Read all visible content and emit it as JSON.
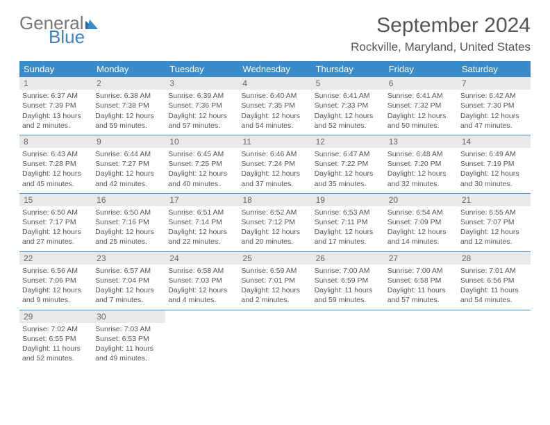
{
  "logo": {
    "general": "General",
    "blue": "Blue",
    "tri_color": "#1e6fb0"
  },
  "title": "September 2024",
  "location": "Rockville, Maryland, United States",
  "colors": {
    "header_bg": "#3a8bc9",
    "daynum_bg": "#e9e9e9",
    "rule": "#3a8bc9",
    "text": "#555"
  },
  "weekdays": [
    "Sunday",
    "Monday",
    "Tuesday",
    "Wednesday",
    "Thursday",
    "Friday",
    "Saturday"
  ],
  "weeks": [
    [
      {
        "day": "1",
        "sunrise": "Sunrise: 6:37 AM",
        "sunset": "Sunset: 7:39 PM",
        "daylight": "Daylight: 13 hours and 2 minutes."
      },
      {
        "day": "2",
        "sunrise": "Sunrise: 6:38 AM",
        "sunset": "Sunset: 7:38 PM",
        "daylight": "Daylight: 12 hours and 59 minutes."
      },
      {
        "day": "3",
        "sunrise": "Sunrise: 6:39 AM",
        "sunset": "Sunset: 7:36 PM",
        "daylight": "Daylight: 12 hours and 57 minutes."
      },
      {
        "day": "4",
        "sunrise": "Sunrise: 6:40 AM",
        "sunset": "Sunset: 7:35 PM",
        "daylight": "Daylight: 12 hours and 54 minutes."
      },
      {
        "day": "5",
        "sunrise": "Sunrise: 6:41 AM",
        "sunset": "Sunset: 7:33 PM",
        "daylight": "Daylight: 12 hours and 52 minutes."
      },
      {
        "day": "6",
        "sunrise": "Sunrise: 6:41 AM",
        "sunset": "Sunset: 7:32 PM",
        "daylight": "Daylight: 12 hours and 50 minutes."
      },
      {
        "day": "7",
        "sunrise": "Sunrise: 6:42 AM",
        "sunset": "Sunset: 7:30 PM",
        "daylight": "Daylight: 12 hours and 47 minutes."
      }
    ],
    [
      {
        "day": "8",
        "sunrise": "Sunrise: 6:43 AM",
        "sunset": "Sunset: 7:28 PM",
        "daylight": "Daylight: 12 hours and 45 minutes."
      },
      {
        "day": "9",
        "sunrise": "Sunrise: 6:44 AM",
        "sunset": "Sunset: 7:27 PM",
        "daylight": "Daylight: 12 hours and 42 minutes."
      },
      {
        "day": "10",
        "sunrise": "Sunrise: 6:45 AM",
        "sunset": "Sunset: 7:25 PM",
        "daylight": "Daylight: 12 hours and 40 minutes."
      },
      {
        "day": "11",
        "sunrise": "Sunrise: 6:46 AM",
        "sunset": "Sunset: 7:24 PM",
        "daylight": "Daylight: 12 hours and 37 minutes."
      },
      {
        "day": "12",
        "sunrise": "Sunrise: 6:47 AM",
        "sunset": "Sunset: 7:22 PM",
        "daylight": "Daylight: 12 hours and 35 minutes."
      },
      {
        "day": "13",
        "sunrise": "Sunrise: 6:48 AM",
        "sunset": "Sunset: 7:20 PM",
        "daylight": "Daylight: 12 hours and 32 minutes."
      },
      {
        "day": "14",
        "sunrise": "Sunrise: 6:49 AM",
        "sunset": "Sunset: 7:19 PM",
        "daylight": "Daylight: 12 hours and 30 minutes."
      }
    ],
    [
      {
        "day": "15",
        "sunrise": "Sunrise: 6:50 AM",
        "sunset": "Sunset: 7:17 PM",
        "daylight": "Daylight: 12 hours and 27 minutes."
      },
      {
        "day": "16",
        "sunrise": "Sunrise: 6:50 AM",
        "sunset": "Sunset: 7:16 PM",
        "daylight": "Daylight: 12 hours and 25 minutes."
      },
      {
        "day": "17",
        "sunrise": "Sunrise: 6:51 AM",
        "sunset": "Sunset: 7:14 PM",
        "daylight": "Daylight: 12 hours and 22 minutes."
      },
      {
        "day": "18",
        "sunrise": "Sunrise: 6:52 AM",
        "sunset": "Sunset: 7:12 PM",
        "daylight": "Daylight: 12 hours and 20 minutes."
      },
      {
        "day": "19",
        "sunrise": "Sunrise: 6:53 AM",
        "sunset": "Sunset: 7:11 PM",
        "daylight": "Daylight: 12 hours and 17 minutes."
      },
      {
        "day": "20",
        "sunrise": "Sunrise: 6:54 AM",
        "sunset": "Sunset: 7:09 PM",
        "daylight": "Daylight: 12 hours and 14 minutes."
      },
      {
        "day": "21",
        "sunrise": "Sunrise: 6:55 AM",
        "sunset": "Sunset: 7:07 PM",
        "daylight": "Daylight: 12 hours and 12 minutes."
      }
    ],
    [
      {
        "day": "22",
        "sunrise": "Sunrise: 6:56 AM",
        "sunset": "Sunset: 7:06 PM",
        "daylight": "Daylight: 12 hours and 9 minutes."
      },
      {
        "day": "23",
        "sunrise": "Sunrise: 6:57 AM",
        "sunset": "Sunset: 7:04 PM",
        "daylight": "Daylight: 12 hours and 7 minutes."
      },
      {
        "day": "24",
        "sunrise": "Sunrise: 6:58 AM",
        "sunset": "Sunset: 7:03 PM",
        "daylight": "Daylight: 12 hours and 4 minutes."
      },
      {
        "day": "25",
        "sunrise": "Sunrise: 6:59 AM",
        "sunset": "Sunset: 7:01 PM",
        "daylight": "Daylight: 12 hours and 2 minutes."
      },
      {
        "day": "26",
        "sunrise": "Sunrise: 7:00 AM",
        "sunset": "Sunset: 6:59 PM",
        "daylight": "Daylight: 11 hours and 59 minutes."
      },
      {
        "day": "27",
        "sunrise": "Sunrise: 7:00 AM",
        "sunset": "Sunset: 6:58 PM",
        "daylight": "Daylight: 11 hours and 57 minutes."
      },
      {
        "day": "28",
        "sunrise": "Sunrise: 7:01 AM",
        "sunset": "Sunset: 6:56 PM",
        "daylight": "Daylight: 11 hours and 54 minutes."
      }
    ],
    [
      {
        "day": "29",
        "sunrise": "Sunrise: 7:02 AM",
        "sunset": "Sunset: 6:55 PM",
        "daylight": "Daylight: 11 hours and 52 minutes."
      },
      {
        "day": "30",
        "sunrise": "Sunrise: 7:03 AM",
        "sunset": "Sunset: 6:53 PM",
        "daylight": "Daylight: 11 hours and 49 minutes."
      },
      null,
      null,
      null,
      null,
      null
    ]
  ]
}
